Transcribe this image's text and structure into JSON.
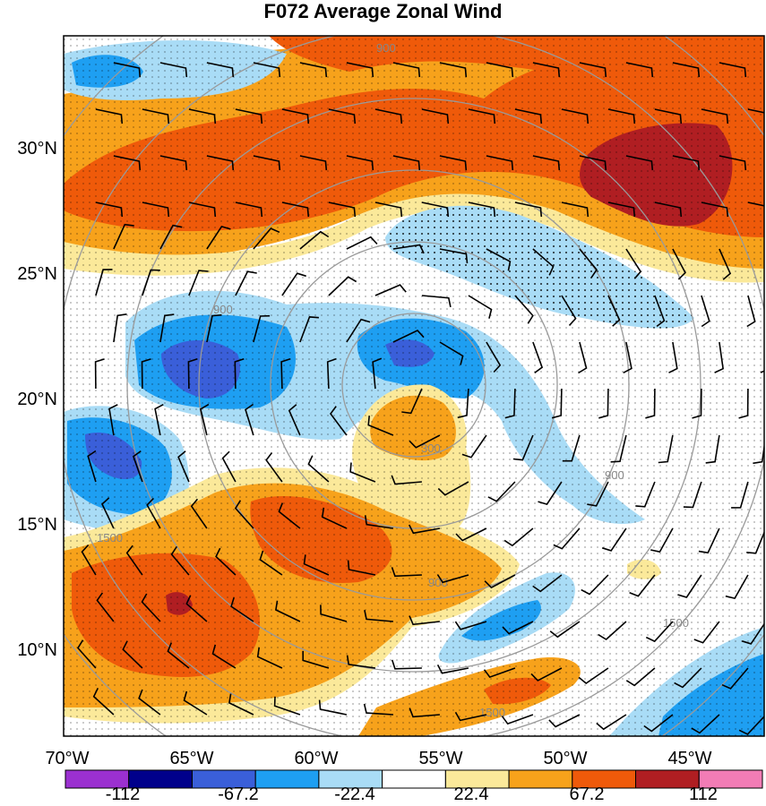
{
  "title": "F072 Average Zonal Wind",
  "lat_labels": [
    "30°N",
    "25°N",
    "20°N",
    "15°N",
    "10°N"
  ],
  "lon_labels": [
    "70°W",
    "65°W",
    "60°W",
    "55°W",
    "50°W",
    "45°W"
  ],
  "colorbar": {
    "colors": [
      "#9b30d0",
      "#00008b",
      "#3a5fd9",
      "#1e9ff2",
      "#a9dcf6",
      "#ffffff",
      "#fbe99a",
      "#f7a21b",
      "#ef5a0a",
      "#b01e22",
      "#f27cb5"
    ],
    "labels": [
      "-112",
      "-67.2",
      "-22.4",
      "22.4",
      "67.2",
      "112"
    ]
  },
  "ring_labels": [
    "300",
    "900",
    "1500"
  ],
  "palette": {
    "dark_red": "#b01e22",
    "red": "#ef5a0a",
    "orange": "#f7a21b",
    "yellow": "#fbe99a",
    "light_blue": "#a9dcf6",
    "blue": "#1e9ff2",
    "mid_blue": "#3a5fd9",
    "navy": "#00008b"
  }
}
